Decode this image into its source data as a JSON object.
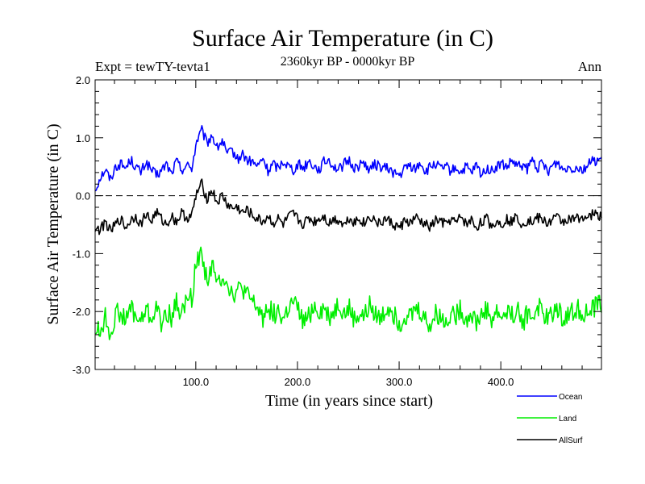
{
  "chart_data": {
    "type": "line",
    "title": "Surface Air Temperature (in C)",
    "subtitle": "2360kyr BP - 0000kyr BP",
    "experiment_label": "Expt = tewTY-tevta1",
    "period_label": "Ann",
    "xlabel": "Time (in years since start)",
    "ylabel": "Surface Air Temperature (in C)",
    "xlim": [
      1,
      499
    ],
    "ylim": [
      -3.0,
      2.0
    ],
    "x_ticks": [
      100,
      200,
      300,
      400
    ],
    "x_tick_labels": [
      "100.0",
      "200.0",
      "300.0",
      "400.0"
    ],
    "y_ticks": [
      -3,
      -2,
      -1,
      0,
      1,
      2
    ],
    "y_tick_labels": [
      "-3.0",
      "-2.0",
      "-1.0",
      "0.0",
      "1.0",
      "2.0"
    ],
    "reference_line": 0.0,
    "x_start": 1,
    "x_step": 5,
    "series": [
      {
        "name": "Ocean",
        "color": "#0000ff",
        "values": [
          0.1,
          0.32,
          0.45,
          0.28,
          0.5,
          0.55,
          0.48,
          0.62,
          0.5,
          0.4,
          0.58,
          0.45,
          0.35,
          0.42,
          0.55,
          0.38,
          0.6,
          0.45,
          0.52,
          0.48,
          0.95,
          1.12,
          0.9,
          1.05,
          0.82,
          0.95,
          0.7,
          0.78,
          0.62,
          0.72,
          0.6,
          0.58,
          0.5,
          0.65,
          0.42,
          0.55,
          0.48,
          0.6,
          0.52,
          0.45,
          0.55,
          0.48,
          0.6,
          0.52,
          0.45,
          0.58,
          0.62,
          0.5,
          0.45,
          0.55,
          0.6,
          0.48,
          0.52,
          0.58,
          0.42,
          0.55,
          0.5,
          0.48,
          0.45,
          0.38,
          0.35,
          0.48,
          0.52,
          0.45,
          0.58,
          0.4,
          0.5,
          0.55,
          0.45,
          0.5,
          0.42,
          0.48,
          0.4,
          0.5,
          0.38,
          0.52,
          0.35,
          0.48,
          0.42,
          0.5,
          0.55,
          0.48,
          0.6,
          0.5,
          0.52,
          0.45,
          0.62,
          0.48,
          0.55,
          0.42,
          0.52,
          0.58,
          0.45,
          0.5,
          0.48,
          0.5,
          0.45,
          0.55,
          0.6,
          0.62
        ]
      },
      {
        "name": "Land",
        "color": "#00ee00",
        "values": [
          -2.3,
          -2.35,
          -2.1,
          -2.4,
          -2.05,
          -2.0,
          -2.2,
          -1.9,
          -2.1,
          -2.2,
          -1.95,
          -2.15,
          -1.9,
          -2.25,
          -2.0,
          -2.1,
          -1.85,
          -2.05,
          -1.8,
          -1.75,
          -1.1,
          -1.0,
          -1.45,
          -1.2,
          -1.55,
          -1.35,
          -1.5,
          -1.7,
          -1.65,
          -1.6,
          -1.75,
          -1.85,
          -1.95,
          -2.1,
          -1.9,
          -2.05,
          -2.0,
          -2.15,
          -1.95,
          -1.85,
          -2.0,
          -2.2,
          -2.1,
          -1.9,
          -2.0,
          -1.95,
          -2.1,
          -2.0,
          -1.85,
          -2.05,
          -1.95,
          -2.15,
          -2.05,
          -2.1,
          -1.9,
          -2.0,
          -2.15,
          -2.0,
          -1.9,
          -2.1,
          -2.2,
          -2.05,
          -2.1,
          -1.95,
          -2.0,
          -2.15,
          -2.25,
          -2.05,
          -2.1,
          -2.2,
          -2.0,
          -2.05,
          -1.95,
          -2.15,
          -2.0,
          -2.2,
          -2.05,
          -1.95,
          -2.15,
          -2.0,
          -2.1,
          -2.0,
          -2.05,
          -1.95,
          -2.2,
          -2.05,
          -2.1,
          -1.9,
          -2.0,
          -2.15,
          -2.0,
          -1.95,
          -2.1,
          -2.05,
          -2.0,
          -1.95,
          -2.0,
          -2.05,
          -1.95,
          -1.85
        ]
      },
      {
        "name": "AllSurf",
        "color": "#000000",
        "values": [
          -0.55,
          -0.6,
          -0.45,
          -0.62,
          -0.5,
          -0.4,
          -0.55,
          -0.42,
          -0.35,
          -0.5,
          -0.3,
          -0.45,
          -0.28,
          -0.4,
          -0.5,
          -0.35,
          -0.45,
          -0.3,
          -0.38,
          -0.35,
          0.05,
          0.2,
          -0.05,
          0.1,
          -0.12,
          0.0,
          -0.15,
          -0.22,
          -0.2,
          -0.3,
          -0.25,
          -0.35,
          -0.4,
          -0.45,
          -0.35,
          -0.48,
          -0.4,
          -0.5,
          -0.38,
          -0.32,
          -0.42,
          -0.5,
          -0.38,
          -0.45,
          -0.4,
          -0.35,
          -0.48,
          -0.4,
          -0.42,
          -0.5,
          -0.38,
          -0.45,
          -0.4,
          -0.48,
          -0.35,
          -0.42,
          -0.5,
          -0.4,
          -0.45,
          -0.52,
          -0.55,
          -0.42,
          -0.48,
          -0.38,
          -0.45,
          -0.5,
          -0.55,
          -0.42,
          -0.45,
          -0.5,
          -0.4,
          -0.48,
          -0.35,
          -0.5,
          -0.42,
          -0.55,
          -0.45,
          -0.4,
          -0.52,
          -0.45,
          -0.48,
          -0.4,
          -0.45,
          -0.35,
          -0.5,
          -0.42,
          -0.45,
          -0.38,
          -0.42,
          -0.48,
          -0.4,
          -0.38,
          -0.45,
          -0.4,
          -0.42,
          -0.38,
          -0.35,
          -0.4,
          -0.3,
          -0.35
        ]
      }
    ],
    "legend": [
      {
        "label": "Ocean",
        "color": "#0000ff"
      },
      {
        "label": "Land",
        "color": "#00ee00"
      },
      {
        "label": "AllSurf",
        "color": "#000000"
      }
    ]
  }
}
